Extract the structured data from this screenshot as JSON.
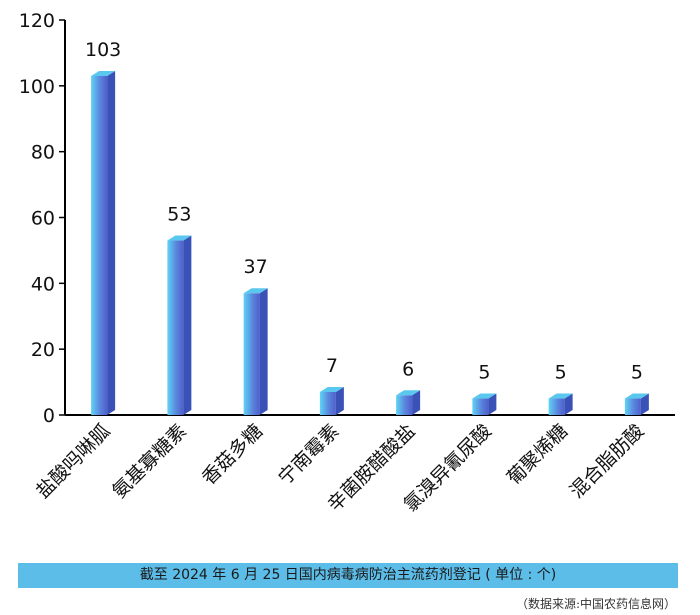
{
  "chart_data": {
    "type": "bar",
    "categories": [
      "盐酸吗啉胍",
      "氨基寡糖素",
      "香菇多糖",
      "宁南霉素",
      "辛菌胺醋酸盐",
      "氯溴异氰尿酸",
      "葡聚烯糖",
      "混合脂肪酸"
    ],
    "values": [
      103,
      53,
      37,
      7,
      6,
      5,
      5,
      5
    ],
    "yticks": [
      0,
      20,
      40,
      60,
      80,
      100,
      120
    ],
    "ylim": [
      0,
      120
    ],
    "grid": false,
    "colors": {
      "front_light": "#5fd3f5",
      "front_dark": "#4f63cf",
      "side": "#3a52b8",
      "top": "#5ac8ee"
    }
  },
  "caption": "截至 2024 年 6 月 25 日国内病毒病防治主流药剂登记 ( 单位 : 个)",
  "source": "（数据来源:中国农药信息网）"
}
